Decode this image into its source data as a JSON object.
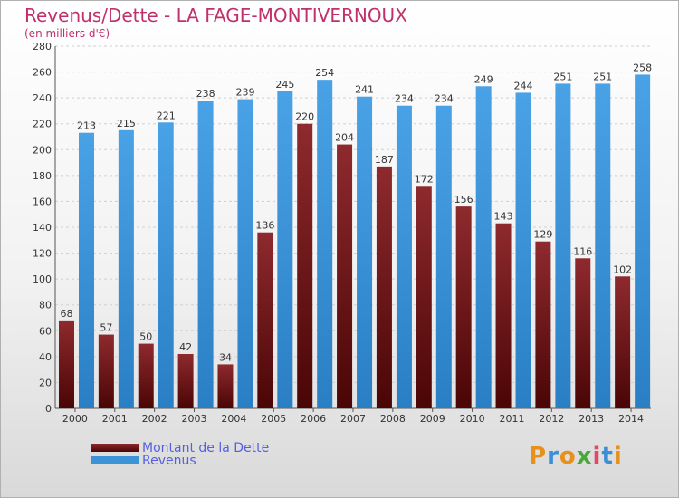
{
  "title": "Revenus/Dette - LA FAGE-MONTIVERNOUX",
  "subtitle": "(en milliers d'€)",
  "logo": "Proxiti",
  "colors": {
    "dette": "#7a1e22",
    "revenus": "#3d93d8",
    "title": "#c0306a",
    "legend_text": "#5560e0"
  },
  "chart_data": {
    "type": "bar",
    "categories": [
      "2000",
      "2001",
      "2002",
      "2003",
      "2004",
      "2005",
      "2006",
      "2007",
      "2008",
      "2009",
      "2010",
      "2011",
      "2012",
      "2013",
      "2014"
    ],
    "series": [
      {
        "name": "Montant de la Dette",
        "values": [
          68,
          57,
          50,
          42,
          34,
          136,
          220,
          204,
          187,
          172,
          156,
          143,
          129,
          116,
          102
        ]
      },
      {
        "name": "Revenus",
        "values": [
          213,
          215,
          221,
          238,
          239,
          245,
          254,
          241,
          234,
          234,
          249,
          244,
          251,
          251,
          258
        ]
      }
    ],
    "ylim": [
      0,
      280
    ],
    "yticks": [
      0,
      20,
      40,
      60,
      80,
      100,
      120,
      140,
      160,
      180,
      200,
      220,
      240,
      260,
      280
    ],
    "grid": true,
    "legend_position": "bottom-left"
  }
}
